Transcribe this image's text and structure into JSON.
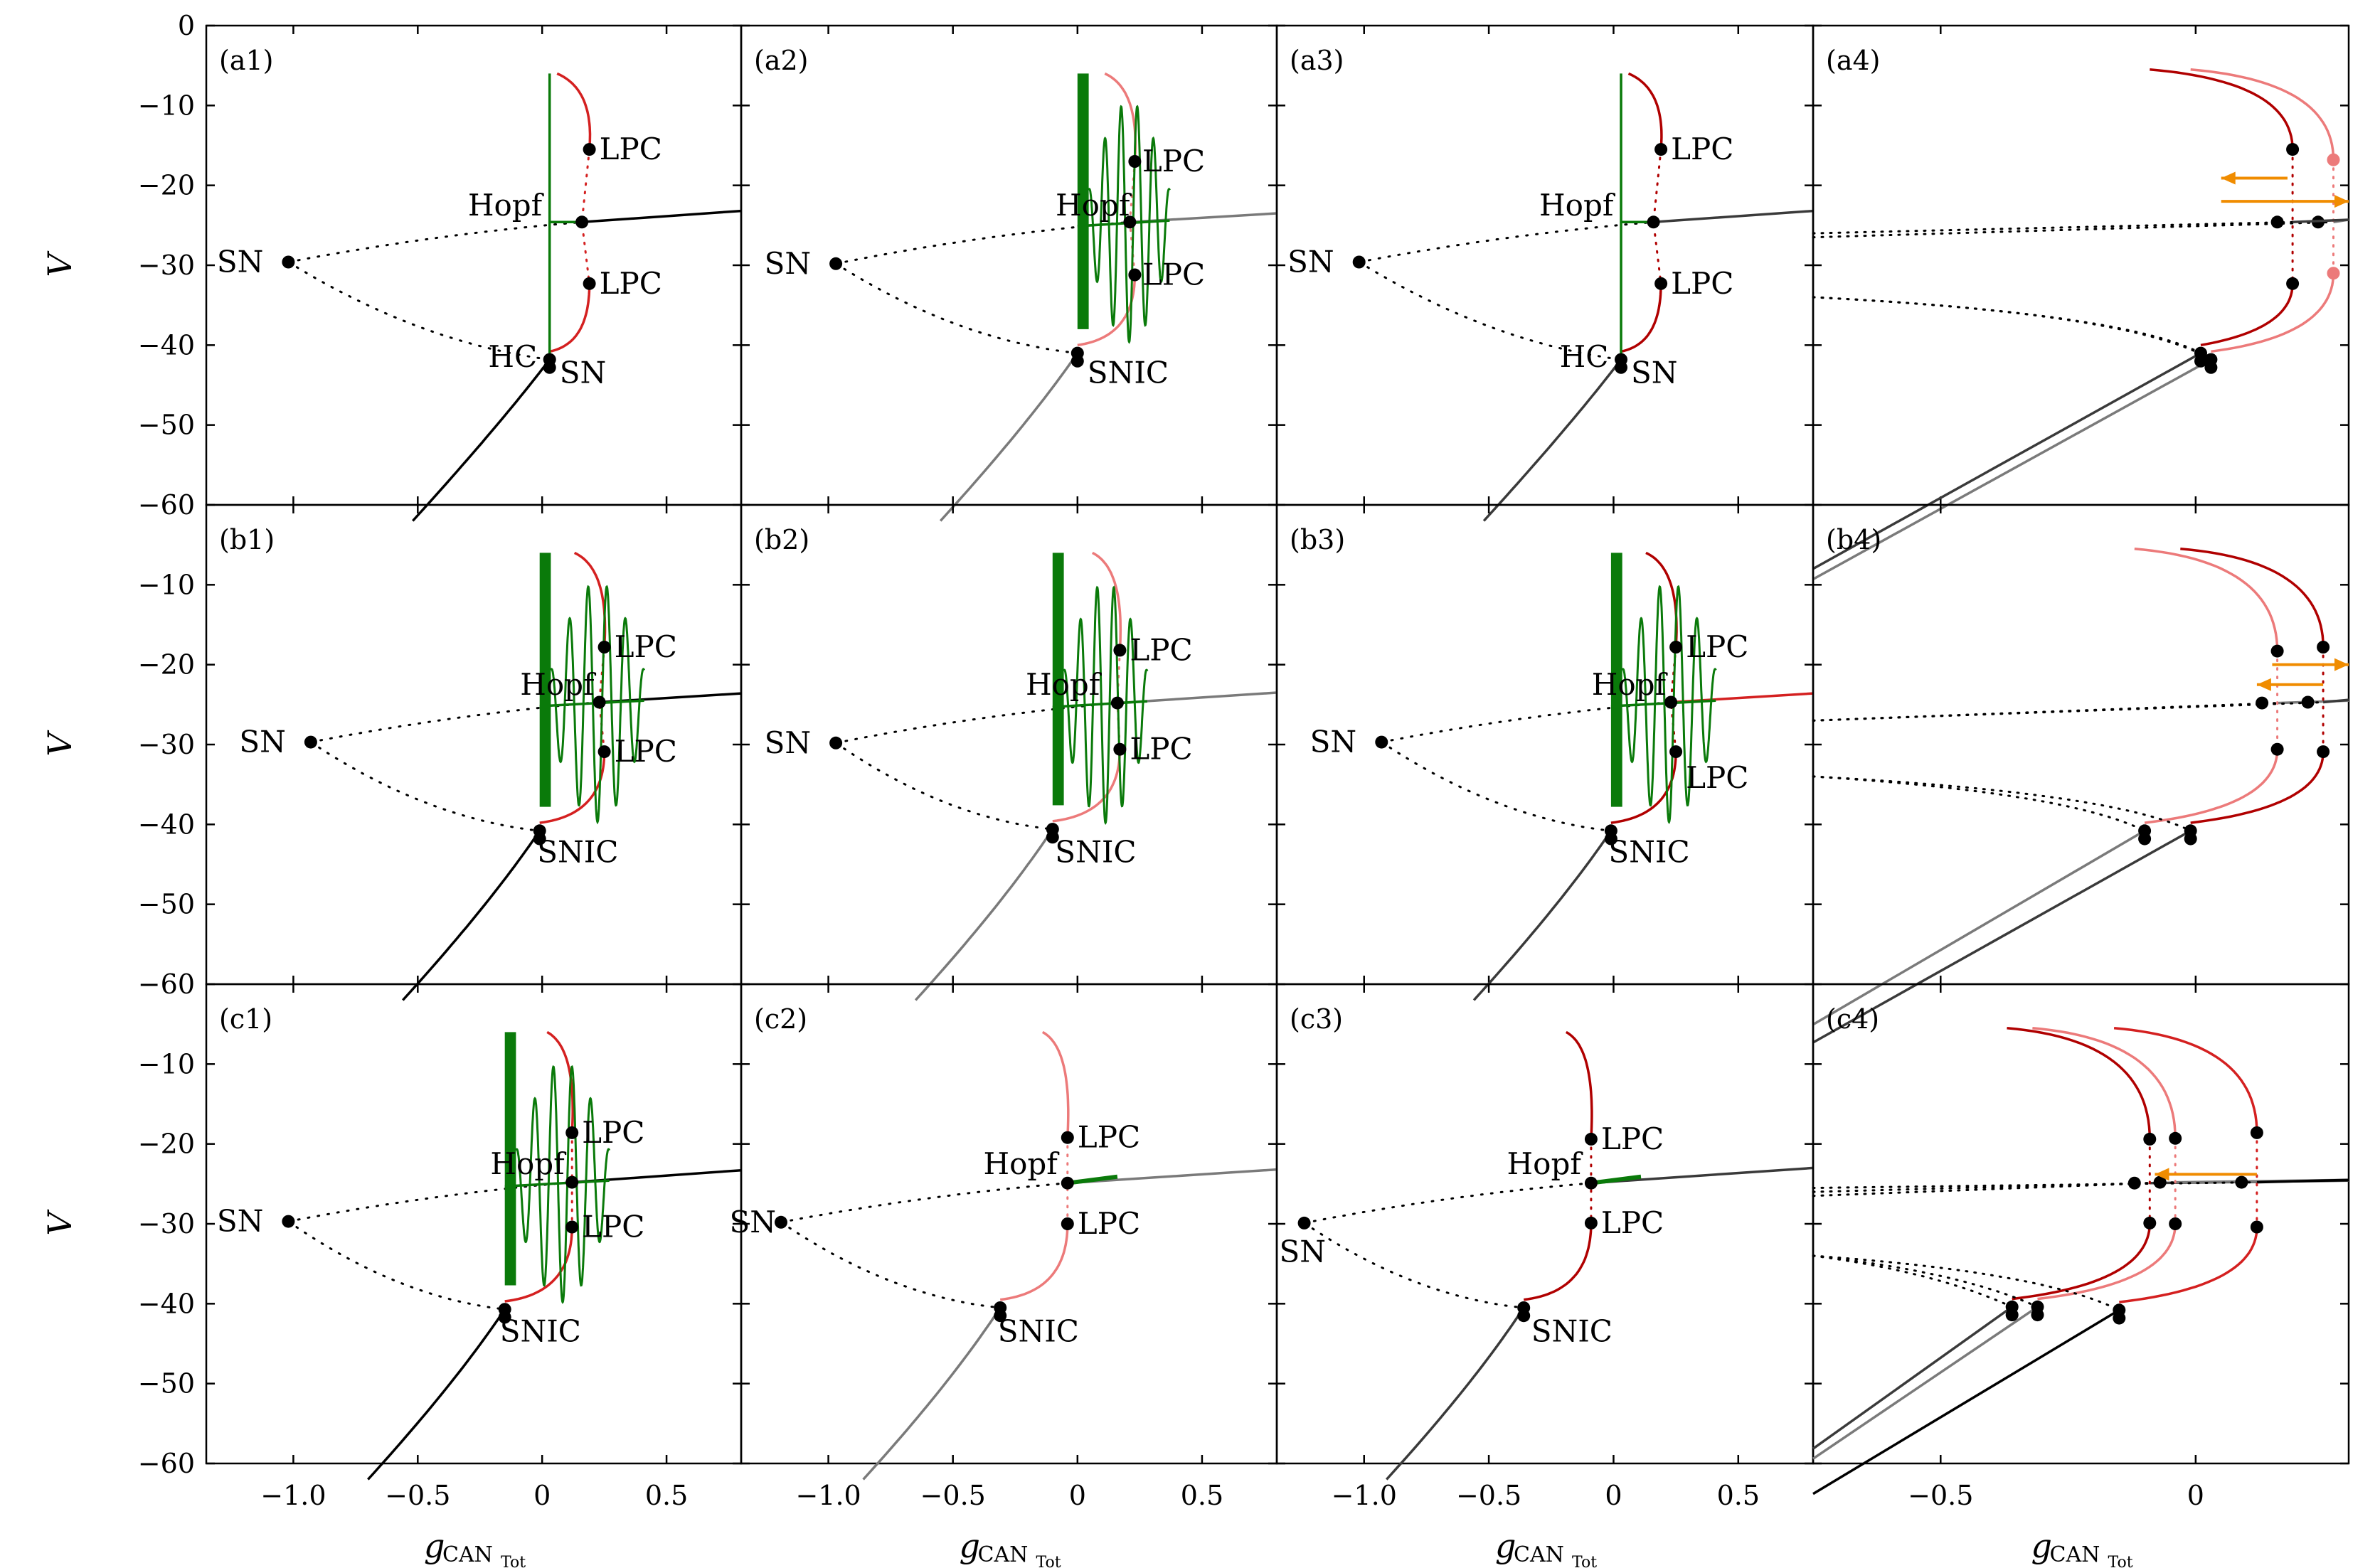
{
  "colors": {
    "dark_red": "#b00000",
    "red": "#d42020",
    "light_red": "#ec7a7a",
    "green": "#0a7a0a",
    "black": "#000000",
    "dark_gray": "#3a3a3a",
    "gray": "#7a7a7a",
    "orange": "#f08c00"
  },
  "chart_data": {
    "type": "line",
    "ylabel": "V",
    "xlabel_main": "g",
    "xlabel_sub": "CAN",
    "xlabel_subsub": "Tot",
    "ylim": [
      -60,
      0
    ],
    "yticks": [
      0,
      -10,
      -20,
      -30,
      -40,
      -50,
      -60
    ],
    "ytick_labels": [
      "0",
      "−10",
      "−20",
      "−30",
      "−40",
      "−50",
      "−60"
    ],
    "rows": [
      "a",
      "b",
      "c"
    ],
    "columns": [
      {
        "xlim": [
          -1.35,
          0.8
        ],
        "xticks": [
          -1.0,
          -0.5,
          0,
          0.5
        ],
        "xtick_labels": [
          "−1.0",
          "−0.5",
          "0",
          "0.5"
        ]
      },
      {
        "xlim": [
          -1.35,
          0.8
        ],
        "xticks": [
          -1.0,
          -0.5,
          0,
          0.5
        ],
        "xtick_labels": [
          "−1.0",
          "−0.5",
          "0",
          "0.5"
        ]
      },
      {
        "xlim": [
          -1.35,
          0.8
        ],
        "xticks": [
          -1.0,
          -0.5,
          0,
          0.5
        ],
        "xtick_labels": [
          "−1.0",
          "−0.5",
          "0",
          "0.5"
        ]
      },
      {
        "xlim": [
          -0.75,
          0.3
        ],
        "xticks": [
          -0.5,
          0
        ],
        "xtick_labels": [
          "−0.5",
          "0"
        ]
      }
    ],
    "panels": [
      {
        "id": "a1",
        "label": "(a1)",
        "row": 0,
        "col": 0,
        "sn_x": -1.02,
        "bif_x": 0.03,
        "hopf_x": 0.16,
        "lpc_x": 0.19,
        "hopf_v": -24.6,
        "lpc_top_v": -15.5,
        "lpc_bot_v": -32.3,
        "sn_v": -29.6,
        "bif_v": -41.8,
        "stable_color": "black",
        "osc": "single",
        "slope_end": -23.2,
        "osc_extent": 0,
        "low_label": "HC / SN",
        "labels": [
          {
            "text": "SN",
            "x": -1.12,
            "y": -29.6,
            "anchor": "end"
          },
          {
            "text": "LPC",
            "x": 0.23,
            "y": -15.5,
            "anchor": "start"
          },
          {
            "text": "Hopf",
            "x": 0.0,
            "y": -22.5,
            "anchor": "end"
          },
          {
            "text": "LPC",
            "x": 0.23,
            "y": -32.3,
            "anchor": "start"
          },
          {
            "text": "HC",
            "x": -0.02,
            "y": -41.5,
            "anchor": "end"
          },
          {
            "text": "SN",
            "x": 0.07,
            "y": -43.5,
            "anchor": "start"
          }
        ]
      },
      {
        "id": "a2",
        "label": "(a2)",
        "row": 0,
        "col": 1,
        "sn_x": -0.97,
        "bif_x": 0.0,
        "hopf_x": 0.21,
        "lpc_x": 0.23,
        "hopf_v": -24.6,
        "lpc_top_v": -17.0,
        "lpc_bot_v": -31.2,
        "sn_v": -29.8,
        "bif_v": -41.0,
        "stable_color": "gray",
        "osc": "multi",
        "slope_end": -23.5,
        "osc_extent": 0.37,
        "labels": [
          {
            "text": "SN",
            "x": -1.07,
            "y": -29.8,
            "anchor": "end"
          },
          {
            "text": "LPC",
            "x": 0.26,
            "y": -17.0,
            "anchor": "start"
          },
          {
            "text": "Hopf",
            "x": 0.21,
            "y": -22.5,
            "anchor": "end"
          },
          {
            "text": "LPC",
            "x": 0.26,
            "y": -31.2,
            "anchor": "start"
          },
          {
            "text": "SNIC",
            "x": 0.04,
            "y": -43.5,
            "anchor": "start"
          }
        ]
      },
      {
        "id": "a3",
        "label": "(a3)",
        "row": 0,
        "col": 2,
        "sn_x": -1.02,
        "bif_x": 0.03,
        "hopf_x": 0.16,
        "lpc_x": 0.19,
        "hopf_v": -24.6,
        "lpc_top_v": -15.5,
        "lpc_bot_v": -32.3,
        "sn_v": -29.6,
        "bif_v": -41.8,
        "stable_color": "dark_gray",
        "osc": "single",
        "slope_end": -23.2,
        "osc_extent": 0,
        "labels": [
          {
            "text": "SN",
            "x": -1.12,
            "y": -29.6,
            "anchor": "end"
          },
          {
            "text": "LPC",
            "x": 0.23,
            "y": -15.5,
            "anchor": "start"
          },
          {
            "text": "Hopf",
            "x": 0.0,
            "y": -22.5,
            "anchor": "end"
          },
          {
            "text": "LPC",
            "x": 0.23,
            "y": -32.3,
            "anchor": "start"
          },
          {
            "text": "HC",
            "x": -0.02,
            "y": -41.5,
            "anchor": "end"
          },
          {
            "text": "SN",
            "x": 0.07,
            "y": -43.5,
            "anchor": "start"
          }
        ]
      },
      {
        "id": "b1",
        "label": "(b1)",
        "row": 1,
        "col": 0,
        "sn_x": -0.93,
        "bif_x": -0.01,
        "hopf_x": 0.23,
        "lpc_x": 0.25,
        "hopf_v": -24.7,
        "lpc_top_v": -17.8,
        "lpc_bot_v": -30.9,
        "sn_v": -29.7,
        "bif_v": -40.8,
        "stable_color": "black",
        "osc": "multi",
        "slope_end": -23.6,
        "osc_extent": 0.42,
        "labels": [
          {
            "text": "SN",
            "x": -1.03,
            "y": -29.7,
            "anchor": "end"
          },
          {
            "text": "LPC",
            "x": 0.29,
            "y": -17.8,
            "anchor": "start"
          },
          {
            "text": "Hopf",
            "x": 0.21,
            "y": -22.5,
            "anchor": "end"
          },
          {
            "text": "LPC",
            "x": 0.29,
            "y": -30.9,
            "anchor": "start"
          },
          {
            "text": "SNIC",
            "x": -0.02,
            "y": -43.5,
            "anchor": "start"
          }
        ]
      },
      {
        "id": "b2",
        "label": "(b2)",
        "row": 1,
        "col": 1,
        "sn_x": -0.97,
        "bif_x": -0.1,
        "hopf_x": 0.16,
        "lpc_x": 0.17,
        "hopf_v": -24.8,
        "lpc_top_v": -18.2,
        "lpc_bot_v": -30.6,
        "sn_v": -29.8,
        "bif_v": -40.6,
        "stable_color": "gray",
        "osc": "multi",
        "slope_end": -23.5,
        "osc_extent": 0.38,
        "labels": [
          {
            "text": "SN",
            "x": -1.07,
            "y": -29.8,
            "anchor": "end"
          },
          {
            "text": "LPC",
            "x": 0.21,
            "y": -18.2,
            "anchor": "start"
          },
          {
            "text": "Hopf",
            "x": 0.09,
            "y": -22.5,
            "anchor": "end"
          },
          {
            "text": "LPC",
            "x": 0.21,
            "y": -30.6,
            "anchor": "start"
          },
          {
            "text": "SNIC",
            "x": -0.09,
            "y": -43.5,
            "anchor": "start"
          }
        ]
      },
      {
        "id": "b3",
        "label": "(b3)",
        "row": 1,
        "col": 2,
        "sn_x": -0.93,
        "bif_x": -0.01,
        "hopf_x": 0.23,
        "lpc_x": 0.25,
        "hopf_v": -24.7,
        "lpc_top_v": -17.8,
        "lpc_bot_v": -30.9,
        "sn_v": -29.7,
        "bif_v": -40.8,
        "stable_color": "dark_gray",
        "osc": "multi",
        "slope_end": -23.6,
        "osc_extent": 0.42,
        "red_tail": true,
        "labels": [
          {
            "text": "SN",
            "x": -1.03,
            "y": -29.7,
            "anchor": "end"
          },
          {
            "text": "LPC",
            "x": 0.29,
            "y": -17.8,
            "anchor": "start"
          },
          {
            "text": "Hopf",
            "x": 0.21,
            "y": -22.5,
            "anchor": "end"
          },
          {
            "text": "LPC",
            "x": 0.29,
            "y": -34.2,
            "anchor": "start"
          },
          {
            "text": "SNIC",
            "x": -0.02,
            "y": -43.5,
            "anchor": "start"
          }
        ]
      },
      {
        "id": "c1",
        "label": "(c1)",
        "row": 2,
        "col": 0,
        "sn_x": -1.02,
        "bif_x": -0.15,
        "hopf_x": 0.12,
        "lpc_x": 0.12,
        "hopf_v": -24.8,
        "lpc_top_v": -18.6,
        "lpc_bot_v": -30.4,
        "sn_v": -29.7,
        "bif_v": -40.7,
        "stable_color": "black",
        "osc": "multi",
        "slope_end": -23.3,
        "osc_extent": 0.42,
        "labels": [
          {
            "text": "SN",
            "x": -1.12,
            "y": -29.7,
            "anchor": "end"
          },
          {
            "text": "LPC",
            "x": 0.16,
            "y": -18.6,
            "anchor": "start"
          },
          {
            "text": "Hopf",
            "x": 0.09,
            "y": -22.5,
            "anchor": "end"
          },
          {
            "text": "LPC",
            "x": 0.16,
            "y": -30.4,
            "anchor": "start"
          },
          {
            "text": "SNIC",
            "x": -0.17,
            "y": -43.5,
            "anchor": "start"
          }
        ]
      },
      {
        "id": "c2",
        "label": "(c2)",
        "row": 2,
        "col": 1,
        "sn_x": -1.19,
        "bif_x": -0.31,
        "hopf_x": -0.04,
        "lpc_x": -0.04,
        "hopf_v": -24.9,
        "lpc_top_v": -19.2,
        "lpc_bot_v": -30.0,
        "sn_v": -29.8,
        "bif_v": -40.5,
        "stable_color": "gray",
        "osc": "none",
        "slope_end": -23.2,
        "osc_extent": 0.2,
        "labels": [
          {
            "text": "SN",
            "x": -1.21,
            "y": -29.8,
            "anchor": "end"
          },
          {
            "text": "LPC",
            "x": 0.0,
            "y": -19.2,
            "anchor": "start"
          },
          {
            "text": "Hopf",
            "x": -0.08,
            "y": -22.5,
            "anchor": "end"
          },
          {
            "text": "LPC",
            "x": 0.0,
            "y": -30.0,
            "anchor": "start"
          },
          {
            "text": "SNIC",
            "x": -0.32,
            "y": -43.5,
            "anchor": "start"
          }
        ]
      },
      {
        "id": "c3",
        "label": "(c3)",
        "row": 2,
        "col": 2,
        "sn_x": -1.24,
        "bif_x": -0.36,
        "hopf_x": -0.09,
        "lpc_x": -0.09,
        "hopf_v": -24.9,
        "lpc_top_v": -19.4,
        "lpc_bot_v": -29.9,
        "sn_v": -29.9,
        "bif_v": -40.5,
        "stable_color": "dark_gray",
        "osc": "none",
        "slope_end": -23.0,
        "osc_extent": 0.2,
        "labels": [
          {
            "text": "SN",
            "x": -1.34,
            "y": -33.5,
            "anchor": "start"
          },
          {
            "text": "LPC",
            "x": -0.05,
            "y": -19.4,
            "anchor": "start"
          },
          {
            "text": "Hopf",
            "x": -0.13,
            "y": -22.5,
            "anchor": "end"
          },
          {
            "text": "LPC",
            "x": -0.05,
            "y": -29.9,
            "anchor": "start"
          },
          {
            "text": "SNIC",
            "x": -0.33,
            "y": -43.5,
            "anchor": "start"
          }
        ]
      }
    ],
    "overlay_panels": [
      {
        "id": "a4",
        "label": "(a4)",
        "row": 0,
        "col": 3,
        "curves": [
          {
            "color": "light_red",
            "stable": "gray",
            "bif_x": 0.03,
            "lpc_x": 0.27,
            "hopf_v": -24.6,
            "lpc_top_v": -16.8,
            "lpc_bot_v": -31.0,
            "bif_v": -41.8,
            "left_v": -26.5,
            "lpc_dots_color": "light_red"
          },
          {
            "color": "dark_red",
            "stable": "dark_gray",
            "bif_x": 0.01,
            "lpc_x": 0.19,
            "hopf_v": -24.6,
            "lpc_top_v": -15.5,
            "lpc_bot_v": -32.3,
            "bif_v": -41.0,
            "left_v": -26.0,
            "lpc_dots_color": "black"
          }
        ],
        "arrows": [
          {
            "x1": 0.18,
            "x2": 0.05,
            "v": -19.1
          },
          {
            "x1": 0.05,
            "x2": 0.3,
            "v": -22.0
          }
        ]
      },
      {
        "id": "b4",
        "label": "(b4)",
        "row": 1,
        "col": 3,
        "curves": [
          {
            "color": "light_red",
            "stable": "gray",
            "bif_x": -0.1,
            "lpc_x": 0.16,
            "hopf_v": -24.8,
            "lpc_top_v": -18.3,
            "lpc_bot_v": -30.6,
            "bif_v": -40.8,
            "left_v": -27.0,
            "lpc_dots_color": "black"
          },
          {
            "color": "dark_red",
            "stable": "dark_gray",
            "bif_x": -0.01,
            "lpc_x": 0.25,
            "hopf_v": -24.7,
            "lpc_top_v": -17.8,
            "lpc_bot_v": -30.9,
            "bif_v": -40.8,
            "left_v": -27.0,
            "lpc_dots_color": "black"
          }
        ],
        "arrows": [
          {
            "x1": 0.15,
            "x2": 0.3,
            "v": -20.0
          },
          {
            "x1": 0.25,
            "x2": 0.12,
            "v": -22.5
          }
        ]
      },
      {
        "id": "c4",
        "label": "(c4)",
        "row": 2,
        "col": 3,
        "curves": [
          {
            "color": "dark_red",
            "stable": "dark_gray",
            "bif_x": -0.36,
            "lpc_x": -0.09,
            "hopf_v": -24.9,
            "lpc_top_v": -19.4,
            "lpc_bot_v": -29.9,
            "bif_v": -40.4,
            "left_v": -26.5,
            "lpc_dots_color": "black"
          },
          {
            "color": "light_red",
            "stable": "gray",
            "bif_x": -0.31,
            "lpc_x": -0.04,
            "hopf_v": -24.8,
            "lpc_top_v": -19.3,
            "lpc_bot_v": -30.0,
            "bif_v": -40.4,
            "left_v": -26.0,
            "lpc_dots_color": "black"
          },
          {
            "color": "red",
            "stable": "black",
            "bif_x": -0.15,
            "lpc_x": 0.12,
            "hopf_v": -24.8,
            "lpc_top_v": -18.6,
            "lpc_bot_v": -30.4,
            "bif_v": -40.8,
            "left_v": -25.5,
            "lpc_dots_color": "black"
          }
        ],
        "arrows": [
          {
            "x1": 0.12,
            "x2": -0.08,
            "v": -23.8
          }
        ]
      }
    ]
  }
}
